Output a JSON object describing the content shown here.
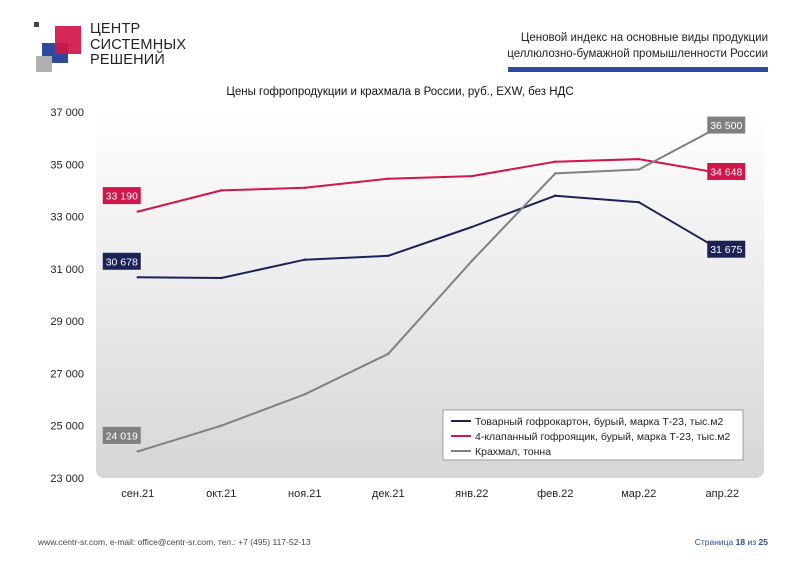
{
  "header": {
    "logo_lines": [
      "ЦЕНТР",
      "СИСТЕМНЫХ",
      "РЕШЕНИЙ"
    ],
    "title_line1": "Ценовой индекс на основные виды продукции",
    "title_line2": "целлюлозно-бумажной промышленности России"
  },
  "footer": {
    "contacts": "www.centr-sr.com, e-mail: office@centr-sr.com, тел.: +7 (495) 117-52-13",
    "page_word": "Страница",
    "page_current": "18",
    "page_of": "из",
    "page_total": "25"
  },
  "colors": {
    "navy": "#1c2257",
    "crimson": "#d0164a",
    "gray": "#808080",
    "brand_blue": "#2e4a9e"
  },
  "chart_data": {
    "type": "line",
    "title": "Цены гофропродукции и крахмала в России, руб., EXW, без НДС",
    "categories": [
      "сен.21",
      "окт.21",
      "ноя.21",
      "дек.21",
      "янв.22",
      "фев.22",
      "мар.22",
      "апр.22"
    ],
    "ylim": [
      23000,
      37000
    ],
    "yticks": [
      23000,
      25000,
      27000,
      29000,
      31000,
      33000,
      35000,
      37000
    ],
    "ytick_labels": [
      "23 000",
      "25 000",
      "27 000",
      "29 000",
      "31 000",
      "33 000",
      "35 000",
      "37 000"
    ],
    "grid": false,
    "legend_position": "bottom-right",
    "series": [
      {
        "name": "Товарный гофрокартон, бурый, марка Т-23, тыс.м2",
        "color": "#1c2257",
        "values": [
          30678,
          30650,
          31350,
          31500,
          32600,
          33800,
          33550,
          31675
        ],
        "start_label": "30 678",
        "end_label": "31 675"
      },
      {
        "name": "4-клапанный гофроящик, бурый, марка Т-23, тыс.м2",
        "color": "#d0164a",
        "values": [
          33190,
          34000,
          34100,
          34450,
          34550,
          35100,
          35200,
          34648
        ],
        "start_label": "33 190",
        "end_label": "34 648"
      },
      {
        "name": "Крахмал, тонна",
        "color": "#808080",
        "values": [
          24019,
          25000,
          26200,
          27750,
          31300,
          34650,
          34800,
          36500
        ],
        "start_label": "24 019",
        "end_label": "36 500"
      }
    ]
  }
}
